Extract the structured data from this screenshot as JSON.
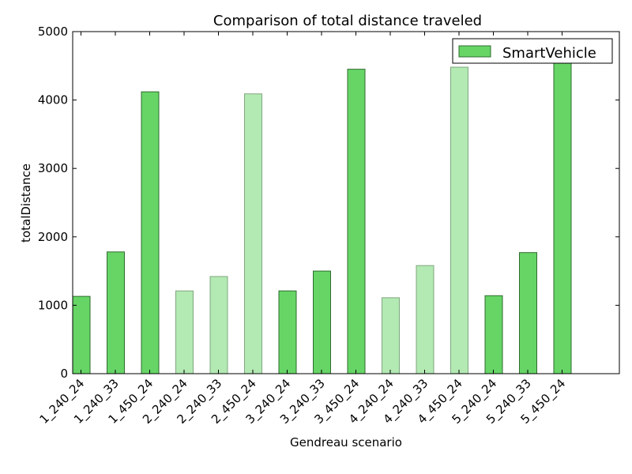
{
  "chart_data": {
    "type": "bar",
    "title": "Comparison of total distance traveled",
    "xlabel": "Gendreau scenario",
    "ylabel": "totalDistance",
    "ylim": [
      0,
      5000
    ],
    "yticks": [
      0,
      1000,
      2000,
      3000,
      4000,
      5000
    ],
    "categories": [
      "1_240_24",
      "1_240_33",
      "1_450_24",
      "2_240_24",
      "2_240_33",
      "2_450_24",
      "3_240_24",
      "3_240_33",
      "3_450_24",
      "4_240_24",
      "4_240_33",
      "4_450_24",
      "5_240_24",
      "5_240_33",
      "5_450_24"
    ],
    "series": [
      {
        "name": "SmartVehicle",
        "values": [
          1130,
          1780,
          4120,
          1210,
          1420,
          4090,
          1210,
          1500,
          4450,
          1110,
          1580,
          4480,
          1140,
          1770,
          4550
        ],
        "shade": [
          "dark",
          "dark",
          "dark",
          "light",
          "light",
          "light",
          "dark",
          "dark",
          "dark",
          "light",
          "light",
          "light",
          "dark",
          "dark",
          "dark"
        ]
      }
    ],
    "colors": {
      "dark_fill": "#66d566",
      "dark_edge": "#2f6b2f",
      "light_fill": "#b3e9b3",
      "light_edge": "#7fa77f"
    },
    "grid": false,
    "legend_position": "top-right"
  }
}
